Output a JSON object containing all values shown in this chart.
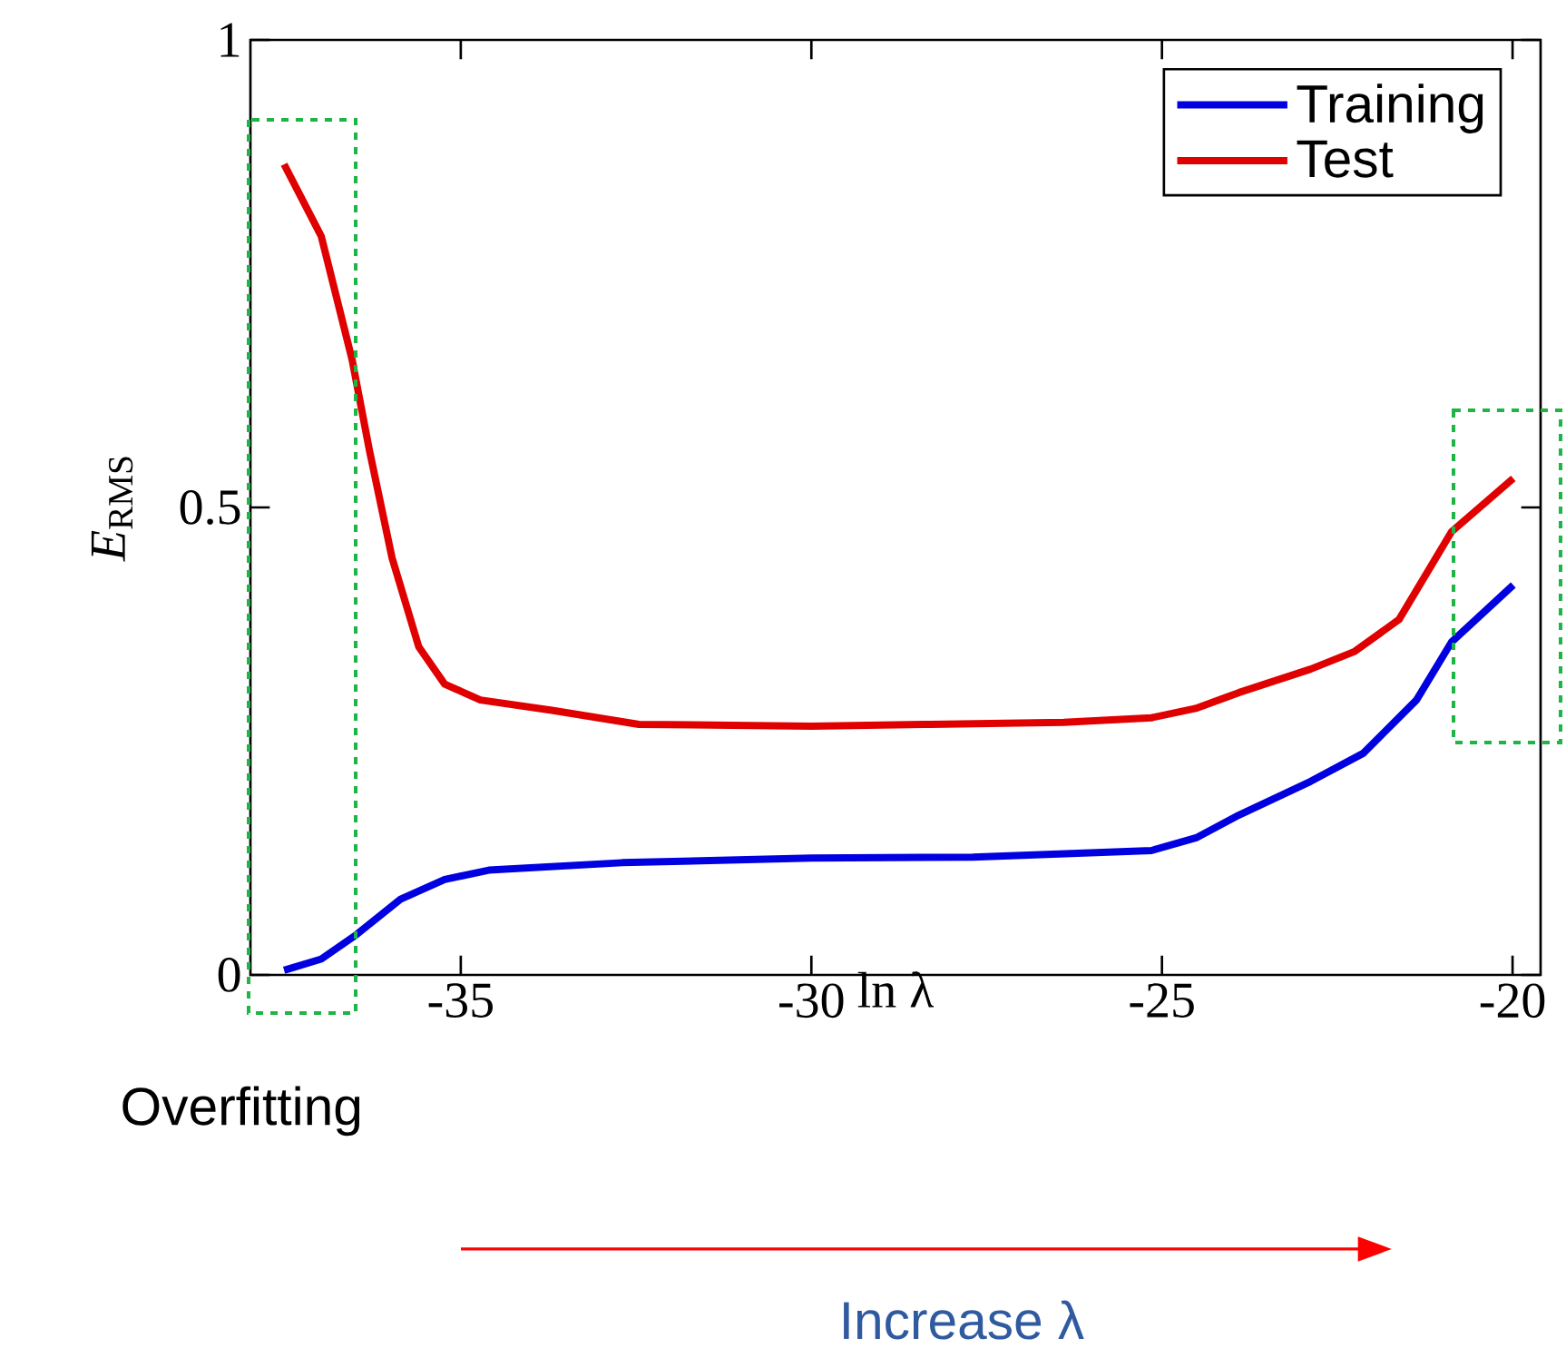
{
  "chart_data": {
    "type": "line",
    "xlabel": "ln λ",
    "ylabel": "*E*$_{RMS}$",
    "xlim": [
      -38,
      -19.6
    ],
    "ylim": [
      0,
      1
    ],
    "xticks": [
      -35,
      -30,
      -25,
      -20
    ],
    "yticks": [
      0,
      0.5,
      1
    ],
    "grid": false,
    "legend": "top right",
    "line_style": "solid",
    "marker": "none",
    "series": [
      {
        "name": "Training",
        "color": "#0000e0",
        "x": [
          -37.52,
          -36.99,
          -36.49,
          -35.86,
          -35.23,
          -34.6,
          -32.7,
          -30,
          -27.7,
          -25.15,
          -24.5,
          -23.9,
          -22.88,
          -22.13,
          -21.37,
          -20.87,
          -19.99
        ],
        "values": [
          0.005,
          0.017,
          0.043,
          0.081,
          0.102,
          0.112,
          0.12,
          0.125,
          0.126,
          0.133,
          0.147,
          0.171,
          0.207,
          0.237,
          0.294,
          0.356,
          0.417
        ]
      },
      {
        "name": "Test",
        "color": "#e00000",
        "x": [
          -37.52,
          -36.99,
          -36.55,
          -36.3,
          -35.98,
          -35.6,
          -35.23,
          -34.72,
          -33.7,
          -32.46,
          -30,
          -28.3,
          -26.4,
          -25.15,
          -24.52,
          -23.9,
          -22.88,
          -22.25,
          -21.62,
          -20.87,
          -19.99
        ],
        "values": [
          0.867,
          0.79,
          0.658,
          0.56,
          0.446,
          0.351,
          0.311,
          0.294,
          0.283,
          0.268,
          0.266,
          0.268,
          0.27,
          0.275,
          0.285,
          0.302,
          0.327,
          0.346,
          0.38,
          0.474,
          0.531
        ]
      }
    ],
    "annotations": [
      "Overfitting",
      "Increase λ"
    ]
  }
}
